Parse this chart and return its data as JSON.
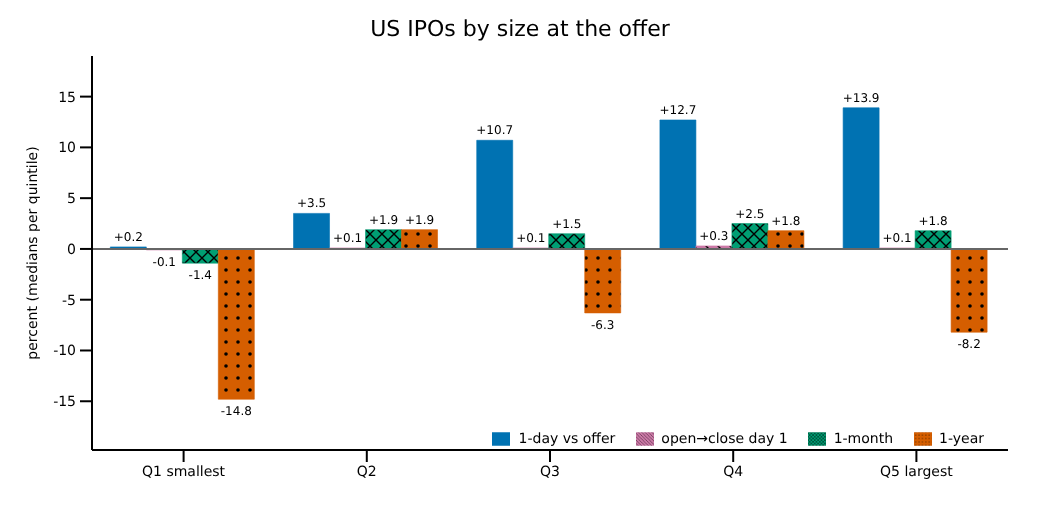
{
  "chart_data": {
    "type": "bar",
    "title": "US IPOs by size at the offer",
    "ylabel": "percent (medians per quintile)",
    "categories": [
      "Q1 smallest",
      "Q2",
      "Q3",
      "Q4",
      "Q5 largest"
    ],
    "series": [
      {
        "name": "1-day vs offer",
        "color": "#0072b2",
        "values": [
          0.2,
          3.5,
          10.7,
          12.7,
          13.9
        ],
        "value_labels": [
          "+0.2",
          "+3.5",
          "+10.7",
          "+12.7",
          "+13.9"
        ]
      },
      {
        "name": "open→close day 1",
        "color": "#cc79a7",
        "values": [
          -0.1,
          0.1,
          0.1,
          0.3,
          0.1
        ],
        "value_labels": [
          "-0.1",
          "+0.1",
          "+0.1",
          "+0.3",
          "+0.1"
        ]
      },
      {
        "name": "1-month",
        "color": "#009e73",
        "values": [
          -1.4,
          1.9,
          1.5,
          2.5,
          1.8
        ],
        "value_labels": [
          "-1.4",
          "+1.9",
          "+1.5",
          "+2.5",
          "+1.8"
        ]
      },
      {
        "name": "1-year",
        "color": "#d55e00",
        "values": [
          -14.8,
          1.9,
          -6.3,
          1.8,
          -8.2
        ],
        "value_labels": [
          "-14.8",
          "+1.9",
          "-6.3",
          "+1.8",
          "-8.2"
        ]
      }
    ],
    "ylim": [
      -19.8,
      19
    ],
    "yticks": [
      -15,
      -10,
      -5,
      0,
      5,
      10,
      15
    ],
    "ref_lines": [
      {
        "axis": "y",
        "value": 0,
        "color": "#666666"
      }
    ],
    "grid": false,
    "legend": "bottom right"
  }
}
